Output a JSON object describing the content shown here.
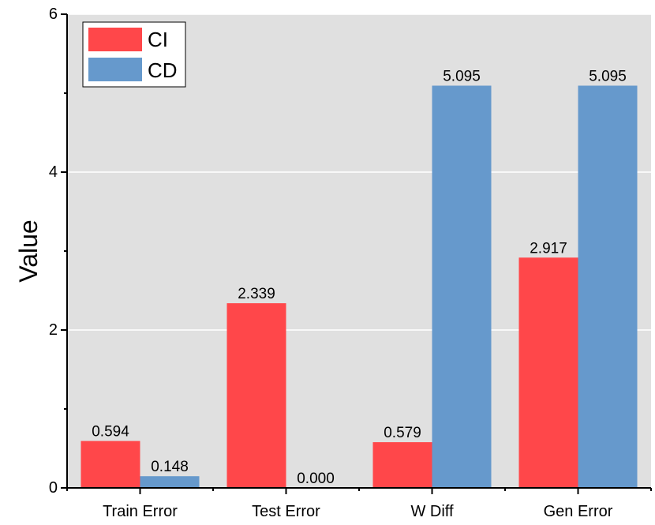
{
  "chart_data": {
    "type": "bar",
    "title": "",
    "xlabel": "",
    "ylabel": "Value",
    "categories": [
      "Train Error",
      "Test Error",
      "W Diff",
      "Gen Error"
    ],
    "series": [
      {
        "name": "CI",
        "color": "#ff474a",
        "values": [
          0.594,
          2.339,
          0.579,
          2.917
        ],
        "labels": [
          "0.594",
          "2.339",
          "0.579",
          "2.917"
        ]
      },
      {
        "name": "CD",
        "color": "#6699cc",
        "values": [
          0.148,
          0.0,
          5.095,
          5.095
        ],
        "labels": [
          "0.148",
          "0.000",
          "5.095",
          "5.095"
        ]
      }
    ],
    "ylim": [
      0,
      6
    ],
    "yticks": [
      0,
      2,
      4,
      6
    ],
    "grid": true,
    "plot_background": "#e0e0e0",
    "legend_position": "top-left"
  }
}
